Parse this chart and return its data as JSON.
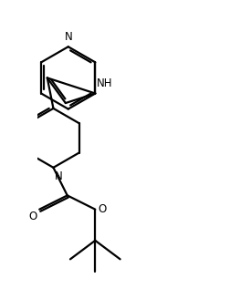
{
  "bg_color": "#ffffff",
  "line_width": 1.6,
  "fig_width": 2.52,
  "fig_height": 3.28,
  "dpi": 100,
  "font_size": 8.5,
  "xlim": [
    -0.5,
    4.5
  ],
  "ylim": [
    0.2,
    9.8
  ]
}
